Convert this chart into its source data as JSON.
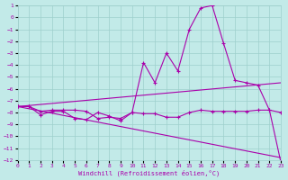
{
  "xlabel": "Windchill (Refroidissement éolien,°C)",
  "background_color": "#c2eae8",
  "grid_color": "#9ecfcc",
  "line_color": "#aa00aa",
  "x_values": [
    0,
    1,
    2,
    3,
    4,
    5,
    6,
    7,
    8,
    9,
    10,
    11,
    12,
    13,
    14,
    15,
    16,
    17,
    18,
    19,
    20,
    21,
    22,
    23
  ],
  "series_curve": [
    -7.5,
    -7.5,
    -8.2,
    -7.9,
    -7.9,
    -8.5,
    -8.6,
    -8.0,
    -8.3,
    -8.7,
    -8.0,
    -3.8,
    -5.5,
    -3.0,
    -4.5,
    -1.0,
    0.8,
    1.0,
    -2.2,
    -5.3,
    -5.5,
    -5.7,
    -7.8,
    -12.2
  ],
  "series_flat": [
    -7.5,
    -7.5,
    -7.9,
    -7.8,
    -7.8,
    -7.8,
    -7.9,
    -8.5,
    -8.4,
    -8.5,
    -8.0,
    -8.1,
    -8.1,
    -8.4,
    -8.4,
    -8.0,
    -7.8,
    -7.9,
    -7.9,
    -7.9,
    -7.9,
    -7.8,
    -7.8,
    -8.0
  ],
  "series_upper_line_x": [
    0,
    23
  ],
  "series_upper_line_y": [
    -7.5,
    -5.5
  ],
  "series_lower_line_x": [
    0,
    23
  ],
  "series_lower_line_y": [
    -7.5,
    -11.8
  ],
  "ylim_top": 1,
  "ylim_bottom": -12,
  "xlim_left": 0,
  "xlim_right": 23,
  "yticks": [
    1,
    0,
    -1,
    -2,
    -3,
    -4,
    -5,
    -6,
    -7,
    -8,
    -9,
    -10,
    -11,
    -12
  ],
  "xticks": [
    0,
    1,
    2,
    3,
    4,
    5,
    6,
    7,
    8,
    9,
    10,
    11,
    12,
    13,
    14,
    15,
    16,
    17,
    18,
    19,
    20,
    21,
    22,
    23
  ]
}
